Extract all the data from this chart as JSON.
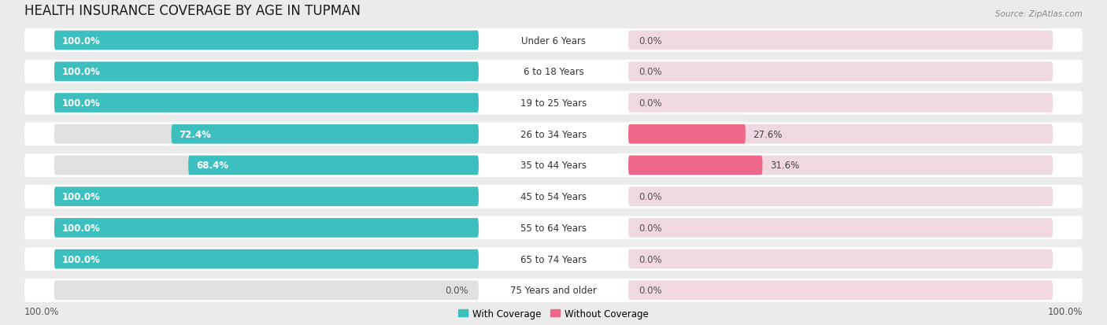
{
  "title": "HEALTH INSURANCE COVERAGE BY AGE IN TUPMAN",
  "source": "Source: ZipAtlas.com",
  "categories": [
    "Under 6 Years",
    "6 to 18 Years",
    "19 to 25 Years",
    "26 to 34 Years",
    "35 to 44 Years",
    "45 to 54 Years",
    "55 to 64 Years",
    "65 to 74 Years",
    "75 Years and older"
  ],
  "with_coverage": [
    100.0,
    100.0,
    100.0,
    72.4,
    68.4,
    100.0,
    100.0,
    100.0,
    0.0
  ],
  "without_coverage": [
    0.0,
    0.0,
    0.0,
    27.6,
    31.6,
    0.0,
    0.0,
    0.0,
    0.0
  ],
  "color_with": "#3dbfbf",
  "color_without_highlight": "#ee6688",
  "color_without_low": "#f5b8ca",
  "color_bar_bg_left": "#e0e0e0",
  "color_bar_bg_right": "#f0d8e0",
  "axis_label_left": "100.0%",
  "axis_label_right": "100.0%",
  "background_color": "#ebebeb",
  "title_fontsize": 12,
  "label_fontsize": 8.5,
  "source_fontsize": 7.5
}
